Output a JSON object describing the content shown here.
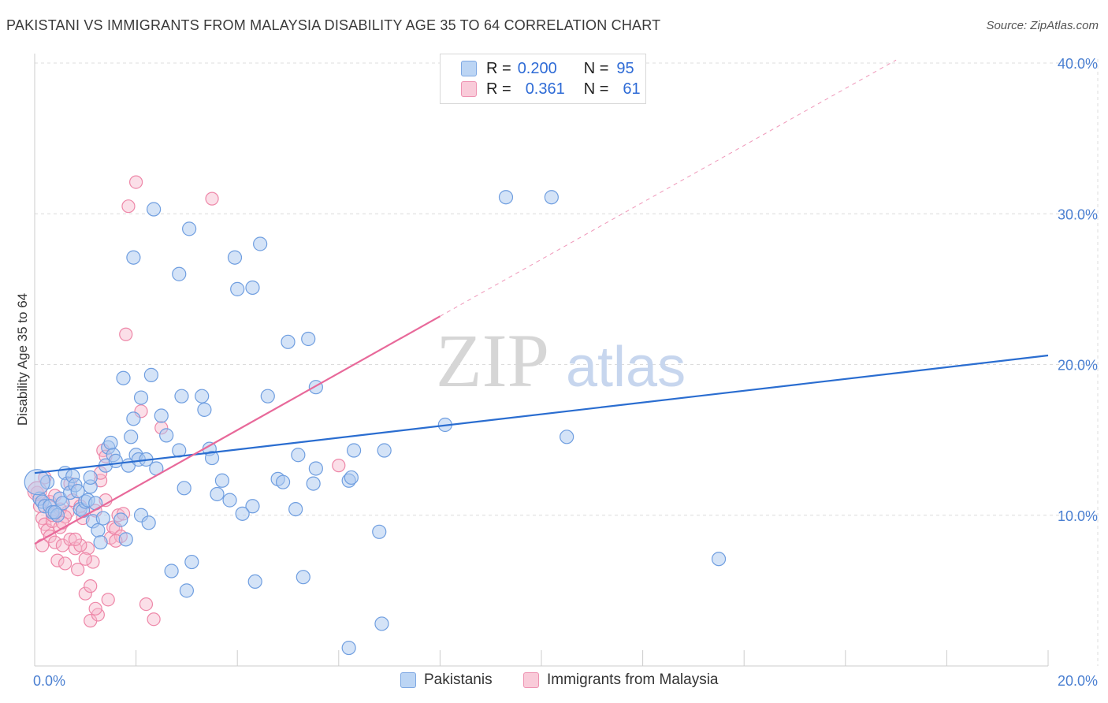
{
  "title": "PAKISTANI VS IMMIGRANTS FROM MALAYSIA DISABILITY AGE 35 TO 64 CORRELATION CHART",
  "source": "Source: ZipAtlas.com",
  "watermark": {
    "zip": "ZIP",
    "atlas": "atlas"
  },
  "legend_top": {
    "rows": [
      {
        "r_label": "R =",
        "r_value": "0.200",
        "n_label": "N =",
        "n_value": "95"
      },
      {
        "r_label": "R =",
        "r_value": "0.361",
        "n_label": "N =",
        "n_value": "61"
      }
    ]
  },
  "legend_bottom": {
    "items": [
      "Pakistanis",
      "Immigrants from Malaysia"
    ]
  },
  "colors": {
    "blue_fill": "#a9c8ef",
    "blue_stroke": "#6f9ee0",
    "blue_line": "#2a6dd0",
    "pink_fill": "#f6b7cb",
    "pink_stroke": "#ee87a8",
    "pink_line": "#e8699a",
    "grid": "#dcdcdc",
    "tick_text": "#4a7fd1"
  },
  "chart_data": {
    "type": "scatter",
    "title": "PAKISTANI VS IMMIGRANTS FROM MALAYSIA DISABILITY AGE 35 TO 64 CORRELATION CHART",
    "xlabel": "",
    "ylabel": "Disability Age 35 to 64",
    "xlim": [
      0,
      20
    ],
    "ylim": [
      0,
      40
    ],
    "x_tick_labels": [
      "0.0%",
      "20.0%"
    ],
    "y_ticks": [
      10,
      20,
      30,
      40
    ],
    "y_tick_labels": [
      "10.0%",
      "20.0%",
      "30.0%",
      "40.0%"
    ],
    "series": [
      {
        "name": "Pakistanis",
        "r": 0.2,
        "n": 95,
        "trend": {
          "x": [
            0,
            20
          ],
          "y": [
            12.8,
            20.6
          ]
        },
        "points": [
          [
            0.1,
            11.1
          ],
          [
            0.15,
            10.9
          ],
          [
            0.2,
            10.6
          ],
          [
            0.3,
            10.6
          ],
          [
            0.35,
            10.2
          ],
          [
            0.45,
            10.0
          ],
          [
            0.5,
            11.1
          ],
          [
            0.55,
            10.8
          ],
          [
            0.6,
            12.8
          ],
          [
            0.65,
            12.1
          ],
          [
            0.7,
            11.5
          ],
          [
            0.75,
            12.6
          ],
          [
            0.8,
            12.0
          ],
          [
            0.85,
            11.6
          ],
          [
            0.9,
            10.4
          ],
          [
            0.95,
            10.3
          ],
          [
            1.0,
            10.9
          ],
          [
            1.05,
            11.0
          ],
          [
            1.1,
            11.9
          ],
          [
            1.15,
            9.6
          ],
          [
            1.2,
            10.8
          ],
          [
            1.25,
            9.0
          ],
          [
            1.3,
            8.2
          ],
          [
            1.35,
            9.8
          ],
          [
            1.4,
            13.3
          ],
          [
            1.45,
            14.5
          ],
          [
            1.5,
            14.8
          ],
          [
            1.55,
            14.0
          ],
          [
            1.6,
            13.6
          ],
          [
            1.7,
            9.7
          ],
          [
            1.8,
            8.4
          ],
          [
            1.85,
            13.3
          ],
          [
            1.9,
            15.2
          ],
          [
            1.95,
            16.4
          ],
          [
            2.0,
            14.0
          ],
          [
            2.05,
            13.7
          ],
          [
            2.1,
            10.0
          ],
          [
            2.2,
            13.7
          ],
          [
            2.25,
            9.5
          ],
          [
            2.3,
            19.3
          ],
          [
            2.4,
            13.1
          ],
          [
            2.5,
            16.6
          ],
          [
            2.6,
            15.3
          ],
          [
            2.7,
            6.3
          ],
          [
            2.85,
            14.3
          ],
          [
            2.95,
            11.8
          ],
          [
            3.0,
            5.0
          ],
          [
            3.05,
            29.0
          ],
          [
            3.1,
            6.9
          ],
          [
            3.3,
            17.9
          ],
          [
            3.35,
            17.0
          ],
          [
            3.45,
            14.4
          ],
          [
            3.5,
            13.8
          ],
          [
            3.6,
            11.4
          ],
          [
            3.85,
            11.0
          ],
          [
            4.0,
            25.0
          ],
          [
            4.3,
            10.6
          ],
          [
            4.35,
            5.6
          ],
          [
            4.6,
            17.9
          ],
          [
            4.8,
            12.4
          ],
          [
            4.9,
            12.2
          ],
          [
            5.0,
            21.5
          ],
          [
            5.2,
            14.0
          ],
          [
            5.4,
            21.7
          ],
          [
            5.55,
            18.5
          ],
          [
            1.75,
            19.1
          ],
          [
            2.35,
            30.3
          ],
          [
            3.95,
            27.1
          ],
          [
            2.85,
            26.0
          ],
          [
            1.95,
            27.1
          ],
          [
            2.1,
            17.8
          ],
          [
            4.45,
            28.0
          ],
          [
            4.3,
            25.1
          ],
          [
            5.15,
            10.4
          ],
          [
            5.3,
            5.9
          ],
          [
            5.5,
            12.1
          ],
          [
            5.55,
            13.1
          ],
          [
            6.3,
            14.3
          ],
          [
            6.2,
            12.3
          ],
          [
            6.25,
            12.5
          ],
          [
            6.8,
            8.9
          ],
          [
            6.85,
            2.8
          ],
          [
            6.9,
            14.3
          ],
          [
            8.1,
            16.0
          ],
          [
            9.3,
            31.1
          ],
          [
            10.2,
            31.1
          ],
          [
            10.5,
            15.2
          ],
          [
            13.5,
            7.1
          ],
          [
            6.2,
            1.2
          ],
          [
            3.7,
            12.3
          ],
          [
            0.25,
            12.2
          ],
          [
            0.4,
            10.2
          ],
          [
            1.1,
            12.5
          ],
          [
            4.1,
            10.1
          ],
          [
            2.9,
            17.9
          ]
        ]
      },
      {
        "name": "Immigrants from Malaysia",
        "r": 0.361,
        "n": 61,
        "trend": {
          "x": [
            0,
            8.0
          ],
          "y": [
            8.1,
            23.2
          ]
        },
        "trend_extended": {
          "x": [
            8.0,
            17.0
          ],
          "y": [
            23.2,
            40.2
          ]
        },
        "points": [
          [
            0.05,
            11.5
          ],
          [
            0.1,
            10.6
          ],
          [
            0.15,
            9.8
          ],
          [
            0.2,
            9.4
          ],
          [
            0.25,
            9.0
          ],
          [
            0.3,
            8.6
          ],
          [
            0.35,
            9.6
          ],
          [
            0.4,
            8.2
          ],
          [
            0.45,
            7.0
          ],
          [
            0.5,
            9.2
          ],
          [
            0.55,
            8.0
          ],
          [
            0.6,
            6.8
          ],
          [
            0.65,
            10.2
          ],
          [
            0.7,
            8.4
          ],
          [
            0.75,
            11.0
          ],
          [
            0.8,
            7.8
          ],
          [
            0.85,
            6.4
          ],
          [
            0.9,
            10.6
          ],
          [
            0.95,
            9.8
          ],
          [
            1.0,
            4.8
          ],
          [
            1.05,
            7.8
          ],
          [
            1.1,
            3.0
          ],
          [
            1.15,
            6.9
          ],
          [
            1.2,
            10.3
          ],
          [
            1.25,
            3.4
          ],
          [
            1.3,
            12.3
          ],
          [
            1.35,
            14.3
          ],
          [
            1.4,
            13.9
          ],
          [
            1.45,
            4.4
          ],
          [
            1.5,
            8.5
          ],
          [
            1.55,
            9.2
          ],
          [
            1.6,
            9.1
          ],
          [
            1.65,
            10.0
          ],
          [
            1.7,
            8.6
          ],
          [
            1.75,
            10.1
          ],
          [
            1.8,
            22.0
          ],
          [
            1.85,
            30.5
          ],
          [
            2.0,
            32.1
          ],
          [
            2.1,
            16.9
          ],
          [
            2.2,
            4.1
          ],
          [
            2.35,
            3.1
          ],
          [
            2.5,
            15.8
          ],
          [
            3.5,
            31.0
          ],
          [
            6.0,
            13.3
          ],
          [
            0.3,
            10.9
          ],
          [
            0.5,
            10.4
          ],
          [
            0.7,
            12.1
          ],
          [
            0.9,
            8.0
          ],
          [
            1.1,
            5.3
          ],
          [
            1.3,
            12.8
          ],
          [
            0.2,
            12.5
          ],
          [
            0.4,
            11.3
          ],
          [
            0.6,
            9.9
          ],
          [
            0.8,
            8.4
          ],
          [
            1.0,
            7.1
          ],
          [
            1.2,
            3.8
          ],
          [
            1.4,
            11.0
          ],
          [
            1.6,
            8.3
          ],
          [
            0.15,
            8.0
          ],
          [
            0.35,
            10.0
          ],
          [
            0.55,
            9.5
          ]
        ]
      }
    ]
  }
}
